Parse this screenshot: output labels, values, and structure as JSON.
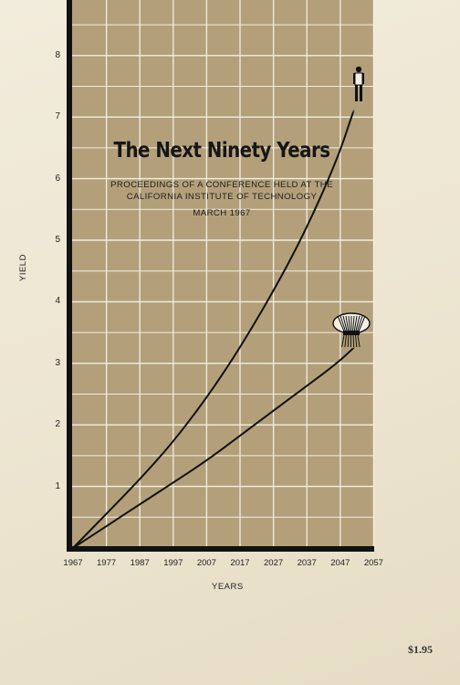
{
  "title": "The Next Ninety Years",
  "subtitle_line1": "PROCEEDINGS OF A CONFERENCE HELD AT THE",
  "subtitle_line2": "CALIFORNIA INSTITUTE OF TECHNOLOGY",
  "date": "MARCH 1967",
  "price": "$1.95",
  "colors": {
    "panel": "#b3a07a",
    "paper": "#efe8d6",
    "ink": "#111111"
  },
  "chart_data": {
    "type": "line",
    "xlabel": "YEARS",
    "ylabel": "YIELD",
    "x_ticks": [
      "1967",
      "1977",
      "1987",
      "1997",
      "2007",
      "2017",
      "2027",
      "2037",
      "2047",
      "2057"
    ],
    "y_ticks": [
      "1",
      "2",
      "3",
      "4",
      "5",
      "6",
      "7",
      "8"
    ],
    "xlim": [
      1967,
      2057
    ],
    "ylim": [
      0,
      8.5
    ],
    "grid": true,
    "series": [
      {
        "icon": "man-icon",
        "x": [
          1967,
          1977,
          1987,
          1997,
          2007,
          2017,
          2027,
          2037,
          2047,
          2052
        ],
        "y": [
          0,
          0.55,
          1.1,
          1.7,
          2.4,
          3.2,
          4.1,
          5.1,
          6.3,
          7.1
        ]
      },
      {
        "icon": "wheat-sheaf-icon",
        "x": [
          1967,
          1977,
          1987,
          1997,
          2007,
          2017,
          2027,
          2037,
          2047,
          2052
        ],
        "y": [
          0,
          0.35,
          0.7,
          1.05,
          1.4,
          1.8,
          2.2,
          2.6,
          3.0,
          3.25
        ]
      }
    ]
  }
}
